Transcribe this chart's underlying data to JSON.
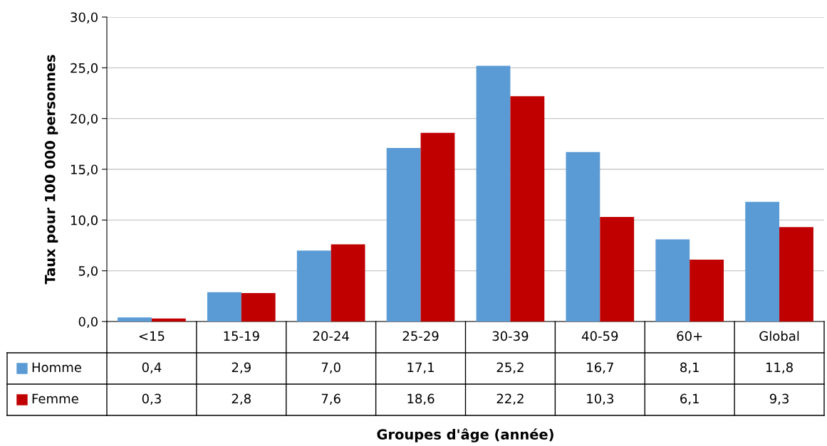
{
  "chart_data": {
    "type": "bar",
    "ylabel": "Taux pour 100 000 personnes",
    "annotations": [
      "Groupes d'âge (année)"
    ],
    "categories": [
      "<15",
      "15-19",
      "20-24",
      "25-29",
      "30-39",
      "40-59",
      "60+",
      "Global"
    ],
    "series": [
      {
        "name": "Homme",
        "color": "#5b9bd5",
        "values": [
          0.4,
          2.9,
          7.0,
          17.1,
          25.2,
          16.7,
          8.1,
          11.8
        ],
        "value_labels": [
          "0,4",
          "2,9",
          "7,0",
          "17,1",
          "25,2",
          "16,7",
          "8,1",
          "11,8"
        ]
      },
      {
        "name": "Femme",
        "color": "#c00000",
        "values": [
          0.3,
          2.8,
          7.6,
          18.6,
          22.2,
          10.3,
          6.1,
          9.3
        ],
        "value_labels": [
          "0,3",
          "2,8",
          "7,6",
          "18,6",
          "22,2",
          "10,3",
          "6,1",
          "9,3"
        ]
      }
    ],
    "ylim": [
      0,
      30
    ],
    "yticks": [
      {
        "value": 0,
        "label": "0,0"
      },
      {
        "value": 5,
        "label": "5,0"
      },
      {
        "value": 10,
        "label": "10,0"
      },
      {
        "value": 15,
        "label": "15,0"
      },
      {
        "value": 20,
        "label": "20,0"
      },
      {
        "value": 25,
        "label": "25,0"
      },
      {
        "value": 30,
        "label": "30,0"
      }
    ],
    "grid": "y",
    "legend": "bottom left"
  }
}
